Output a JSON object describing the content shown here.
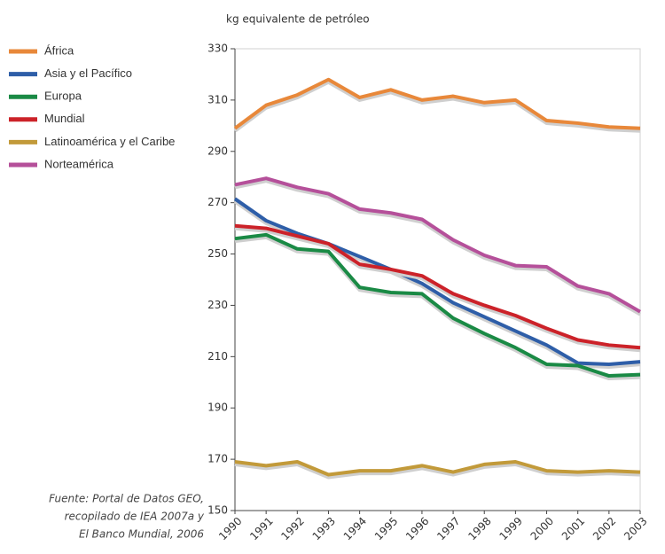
{
  "chart_data": {
    "type": "line",
    "y_label": "kg equivalente de petróleo",
    "source": [
      "Fuente: Portal de Datos GEO,",
      "recopilado de IEA 2007a y",
      "El Banco Mundial, 2006"
    ],
    "x": [
      1990,
      1991,
      1992,
      1993,
      1994,
      1995,
      1996,
      1997,
      1998,
      1999,
      2000,
      2001,
      2002,
      2003
    ],
    "xlim": [
      1990,
      2003
    ],
    "ylim": [
      150,
      330
    ],
    "yticks": [
      150,
      170,
      190,
      210,
      230,
      250,
      270,
      290,
      310,
      330
    ],
    "legend": "top-left",
    "series": [
      {
        "name": "África",
        "color": "#e8883a",
        "values": [
          299,
          308,
          312,
          318,
          311,
          314,
          310,
          311.5,
          309,
          310,
          302,
          301,
          299.5,
          299
        ]
      },
      {
        "name": "Asia y el Pacífico",
        "color": "#2e5ea8",
        "values": [
          271.5,
          263,
          258,
          254,
          249,
          244,
          238.5,
          231,
          225.5,
          220,
          214.5,
          207.5,
          207,
          208
        ]
      },
      {
        "name": "Europa",
        "color": "#1a8a45",
        "values": [
          256,
          257.5,
          252,
          251,
          237,
          235,
          234.5,
          225,
          219,
          213.5,
          207,
          206.5,
          202.5,
          203
        ]
      },
      {
        "name": "Mundial",
        "color": "#cc2229",
        "values": [
          261,
          260,
          257,
          254,
          246,
          244,
          241.5,
          234.5,
          230,
          226,
          221,
          216.5,
          214.5,
          213.5
        ]
      },
      {
        "name": "Latinoamérica y el Caribe",
        "color": "#c29a3a",
        "values": [
          169,
          167.5,
          169,
          164,
          165.5,
          165.5,
          167.5,
          165,
          168,
          169,
          165.5,
          165,
          165.5,
          165
        ]
      },
      {
        "name": "Norteamérica",
        "color": "#b5509a",
        "values": [
          277,
          279.5,
          276,
          273.5,
          267.5,
          266,
          263.5,
          255.5,
          249.5,
          245.5,
          245,
          237.5,
          234.5,
          227.5
        ]
      }
    ]
  }
}
